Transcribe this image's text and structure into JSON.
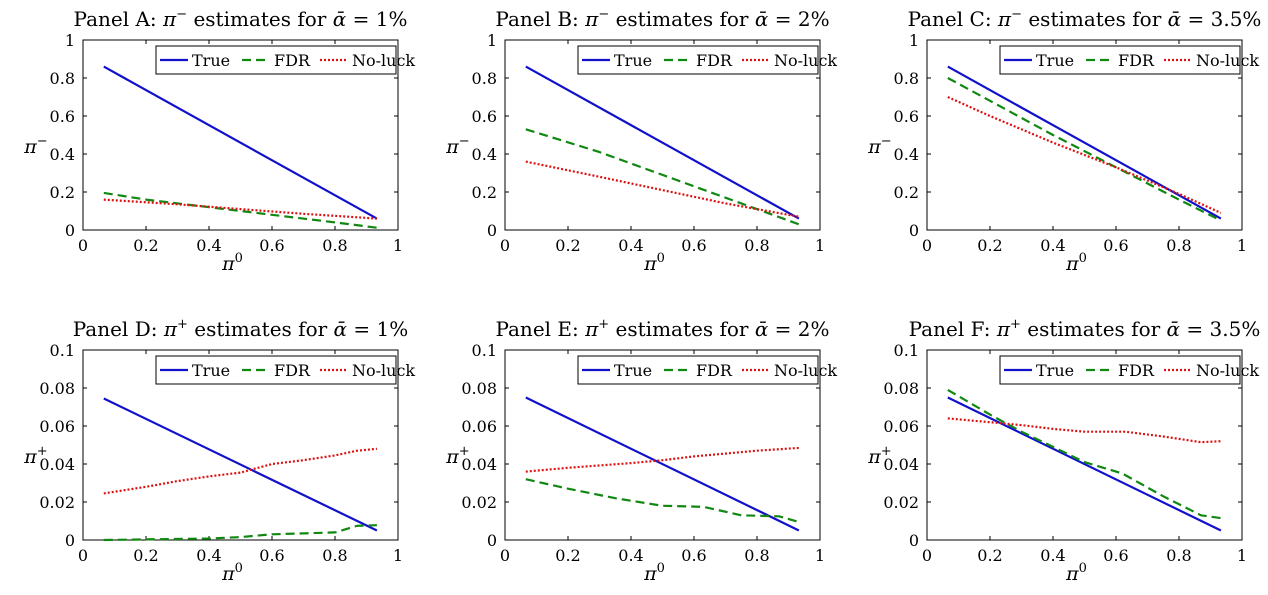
{
  "chart_data": [
    {
      "type": "line",
      "title": {
        "prefix": "Panel A: ",
        "sym": "π",
        "sup": "−",
        "mid": " estimates for ",
        "alpha": "ᾱ",
        "suffix": " = 1%"
      },
      "xlabel": {
        "sym": "π",
        "sup": "0"
      },
      "ylabel": {
        "sym": "π",
        "sup": "−"
      },
      "xlim": [
        0,
        1
      ],
      "ylim": [
        0,
        1
      ],
      "xticks": [
        "0",
        "0.2",
        "0.4",
        "0.6",
        "0.8",
        "1"
      ],
      "yticks": [
        "0",
        "0.2",
        "0.4",
        "0.6",
        "0.8",
        "1"
      ],
      "legend_position": "top-right",
      "series": [
        {
          "name": "True",
          "x": [
            0.066,
            0.933
          ],
          "y": [
            0.86,
            0.06
          ]
        },
        {
          "name": "FDR",
          "x": [
            0.066,
            0.2,
            0.4,
            0.6,
            0.8,
            0.933
          ],
          "y": [
            0.195,
            0.16,
            0.12,
            0.08,
            0.04,
            0.012
          ]
        },
        {
          "name": "No-luck",
          "x": [
            0.066,
            0.3,
            0.5,
            0.7,
            0.933
          ],
          "y": [
            0.16,
            0.135,
            0.11,
            0.085,
            0.06
          ]
        }
      ]
    },
    {
      "type": "line",
      "title": {
        "prefix": "Panel B: ",
        "sym": "π",
        "sup": "−",
        "mid": " estimates for ",
        "alpha": "ᾱ",
        "suffix": " = 2%"
      },
      "xlabel": {
        "sym": "π",
        "sup": "0"
      },
      "ylabel": {
        "sym": "π",
        "sup": "−"
      },
      "xlim": [
        0,
        1
      ],
      "ylim": [
        0,
        1
      ],
      "xticks": [
        "0",
        "0.2",
        "0.4",
        "0.6",
        "0.8",
        "1"
      ],
      "yticks": [
        "0",
        "0.2",
        "0.4",
        "0.6",
        "0.8",
        "1"
      ],
      "legend_position": "top-right",
      "series": [
        {
          "name": "True",
          "x": [
            0.066,
            0.933
          ],
          "y": [
            0.86,
            0.06
          ]
        },
        {
          "name": "FDR",
          "x": [
            0.066,
            0.3,
            0.5,
            0.7,
            0.933
          ],
          "y": [
            0.53,
            0.41,
            0.29,
            0.17,
            0.03
          ]
        },
        {
          "name": "No-luck",
          "x": [
            0.066,
            0.3,
            0.5,
            0.7,
            0.933
          ],
          "y": [
            0.36,
            0.28,
            0.21,
            0.14,
            0.07
          ]
        }
      ]
    },
    {
      "type": "line",
      "title": {
        "prefix": "Panel C: ",
        "sym": "π",
        "sup": "−",
        "mid": " estimates for ",
        "alpha": "ᾱ",
        "suffix": " = 3.5%"
      },
      "xlabel": {
        "sym": "π",
        "sup": "0"
      },
      "ylabel": {
        "sym": "π",
        "sup": "−"
      },
      "xlim": [
        0,
        1
      ],
      "ylim": [
        0,
        1
      ],
      "xticks": [
        "0",
        "0.2",
        "0.4",
        "0.6",
        "0.8",
        "1"
      ],
      "yticks": [
        "0",
        "0.2",
        "0.4",
        "0.6",
        "0.8",
        "1"
      ],
      "legend_position": "top-right",
      "series": [
        {
          "name": "True",
          "x": [
            0.066,
            0.933
          ],
          "y": [
            0.86,
            0.06
          ]
        },
        {
          "name": "FDR",
          "x": [
            0.066,
            0.2,
            0.4,
            0.6,
            0.8,
            0.933
          ],
          "y": [
            0.8,
            0.68,
            0.5,
            0.33,
            0.16,
            0.05
          ]
        },
        {
          "name": "No-luck",
          "x": [
            0.066,
            0.2,
            0.4,
            0.6,
            0.8,
            0.933
          ],
          "y": [
            0.7,
            0.6,
            0.46,
            0.33,
            0.19,
            0.09
          ]
        }
      ]
    },
    {
      "type": "line",
      "title": {
        "prefix": "Panel D: ",
        "sym": "π",
        "sup": "+",
        "mid": " estimates for ",
        "alpha": "ᾱ",
        "suffix": " = 1%"
      },
      "xlabel": {
        "sym": "π",
        "sup": "0"
      },
      "ylabel": {
        "sym": "π",
        "sup": "+"
      },
      "xlim": [
        0,
        1
      ],
      "ylim": [
        0,
        0.1
      ],
      "xticks": [
        "0",
        "0.2",
        "0.4",
        "0.6",
        "0.8",
        "1"
      ],
      "yticks": [
        "0",
        "0.02",
        "0.04",
        "0.06",
        "0.08",
        "0.1"
      ],
      "legend_position": "top-right",
      "series": [
        {
          "name": "True",
          "x": [
            0.066,
            0.933
          ],
          "y": [
            0.0745,
            0.005
          ]
        },
        {
          "name": "FDR",
          "x": [
            0.066,
            0.2,
            0.4,
            0.5,
            0.6,
            0.7,
            0.8,
            0.87,
            0.933
          ],
          "y": [
            0.0,
            0.0003,
            0.0008,
            0.0015,
            0.003,
            0.0035,
            0.004,
            0.0075,
            0.0078
          ]
        },
        {
          "name": "No-luck",
          "x": [
            0.066,
            0.2,
            0.3,
            0.4,
            0.5,
            0.6,
            0.7,
            0.8,
            0.87,
            0.933
          ],
          "y": [
            0.0245,
            0.028,
            0.031,
            0.0335,
            0.0355,
            0.04,
            0.042,
            0.0445,
            0.047,
            0.048
          ]
        }
      ]
    },
    {
      "type": "line",
      "title": {
        "prefix": "Panel E: ",
        "sym": "π",
        "sup": "+",
        "mid": " estimates for ",
        "alpha": "ᾱ",
        "suffix": " = 2%"
      },
      "xlabel": {
        "sym": "π",
        "sup": "0"
      },
      "ylabel": {
        "sym": "π",
        "sup": "+"
      },
      "xlim": [
        0,
        1
      ],
      "ylim": [
        0,
        0.1
      ],
      "xticks": [
        "0",
        "0.2",
        "0.4",
        "0.6",
        "0.8",
        "1"
      ],
      "yticks": [
        "0",
        "0.02",
        "0.04",
        "0.06",
        "0.08",
        "0.1"
      ],
      "legend_position": "top-right",
      "series": [
        {
          "name": "True",
          "x": [
            0.066,
            0.933
          ],
          "y": [
            0.075,
            0.005
          ]
        },
        {
          "name": "FDR",
          "x": [
            0.066,
            0.2,
            0.35,
            0.5,
            0.63,
            0.75,
            0.87,
            0.933
          ],
          "y": [
            0.032,
            0.027,
            0.022,
            0.018,
            0.0175,
            0.013,
            0.0125,
            0.0095
          ]
        },
        {
          "name": "No-luck",
          "x": [
            0.066,
            0.2,
            0.4,
            0.5,
            0.6,
            0.8,
            0.933
          ],
          "y": [
            0.036,
            0.038,
            0.0405,
            0.042,
            0.044,
            0.047,
            0.0485
          ]
        }
      ]
    },
    {
      "type": "line",
      "title": {
        "prefix": "Panel F: ",
        "sym": "π",
        "sup": "+",
        "mid": " estimates for ",
        "alpha": "ᾱ",
        "suffix": " = 3.5%"
      },
      "xlabel": {
        "sym": "π",
        "sup": "0"
      },
      "ylabel": {
        "sym": "π",
        "sup": "+"
      },
      "xlim": [
        0,
        1
      ],
      "ylim": [
        0,
        0.1
      ],
      "xticks": [
        "0",
        "0.2",
        "0.4",
        "0.6",
        "0.8",
        "1"
      ],
      "yticks": [
        "0",
        "0.02",
        "0.04",
        "0.06",
        "0.08",
        "0.1"
      ],
      "legend_position": "top-right",
      "series": [
        {
          "name": "True",
          "x": [
            0.066,
            0.933
          ],
          "y": [
            0.075,
            0.005
          ]
        },
        {
          "name": "FDR",
          "x": [
            0.066,
            0.2,
            0.3,
            0.4,
            0.5,
            0.62,
            0.75,
            0.87,
            0.933
          ],
          "y": [
            0.079,
            0.066,
            0.057,
            0.049,
            0.041,
            0.035,
            0.023,
            0.013,
            0.0115
          ]
        },
        {
          "name": "No-luck",
          "x": [
            0.066,
            0.2,
            0.3,
            0.4,
            0.5,
            0.63,
            0.75,
            0.87,
            0.933
          ],
          "y": [
            0.064,
            0.062,
            0.0605,
            0.0585,
            0.057,
            0.057,
            0.0545,
            0.0515,
            0.052
          ]
        }
      ]
    }
  ],
  "series_styles": {
    "True": {
      "color": "#1111cc",
      "dash": "solid"
    },
    "FDR": {
      "color": "#118811",
      "dash": "dashed"
    },
    "No-luck": {
      "color": "#dd1111",
      "dash": "dotted"
    }
  }
}
